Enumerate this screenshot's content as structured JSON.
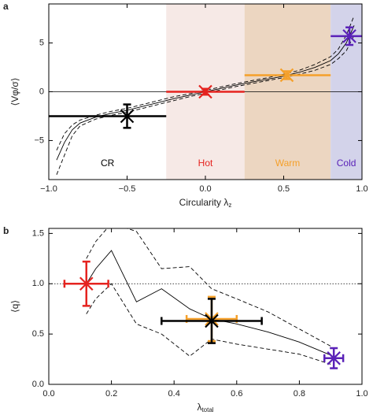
{
  "chart_data": [
    {
      "type": "errorbar",
      "panel": "a",
      "ylabel": "⟨Vφ/σ⟩",
      "xlabel": "Circularity λ",
      "xlabel_sub": "z",
      "xlim": [
        -1,
        1
      ],
      "ylim": [
        -9,
        9
      ],
      "xticks": [
        {
          "value": -1,
          "label": "−1.0"
        },
        {
          "value": -0.5,
          "label": "−0.5"
        },
        {
          "value": 0,
          "label": "0.0"
        },
        {
          "value": 0.5,
          "label": "0.5"
        },
        {
          "value": 1,
          "label": "1.0"
        }
      ],
      "yticks": [
        {
          "value": -5,
          "label": "−5"
        },
        0,
        5
      ],
      "hline": 0,
      "hline_style": "solid",
      "xcaps": false,
      "regions": {
        "labels": [
          "CR",
          "Hot",
          "Warm",
          "Cold"
        ],
        "start": [
          -1,
          -0.25,
          0.25,
          0.8
        ],
        "end": [
          -0.25,
          0.25,
          0.8,
          1
        ],
        "fill": [
          "#ffffff",
          "#f6e9e6",
          "#ecd6c1",
          "#d3d3ea"
        ],
        "label_color": [
          "#000000",
          "#e5231f",
          "#f5a02a",
          "#5a22b8"
        ]
      },
      "x": [
        -0.95,
        -0.9,
        -0.85,
        -0.8,
        -0.7,
        -0.6,
        -0.5,
        -0.4,
        -0.3,
        -0.2,
        -0.1,
        0,
        0.1,
        0.2,
        0.3,
        0.4,
        0.5,
        0.6,
        0.7,
        0.8,
        0.85,
        0.9,
        0.95
      ],
      "lines": [
        {
          "dash": false,
          "values": [
            -7,
            -5.2,
            -3.9,
            -3.2,
            -2.6,
            -2.2,
            -1.9,
            -1.5,
            -1.1,
            -0.7,
            -0.35,
            0,
            0.35,
            0.7,
            1.0,
            1.3,
            1.6,
            2.0,
            2.5,
            3.2,
            3.9,
            5.0,
            6.8
          ]
        },
        {
          "dash": true,
          "values": [
            -8.5,
            -6.5,
            -4.5,
            -3.5,
            -2.8,
            -2.4,
            -2.1,
            -1.7,
            -1.3,
            -0.9,
            -0.5,
            -0.15,
            0.2,
            0.55,
            0.85,
            1.15,
            1.45,
            1.8,
            2.2,
            2.8,
            3.4,
            4.2,
            5.8
          ]
        },
        {
          "dash": true,
          "values": [
            -6,
            -4.3,
            -3.4,
            -2.9,
            -2.4,
            -2.0,
            -1.7,
            -1.3,
            -0.9,
            -0.5,
            -0.2,
            0.15,
            0.5,
            0.85,
            1.15,
            1.45,
            1.8,
            2.2,
            2.8,
            3.6,
            4.4,
            5.8,
            7.8
          ]
        }
      ],
      "points": {
        "x": [
          -0.5,
          0,
          0.52,
          0.92
        ],
        "y": [
          -2.5,
          0,
          1.7,
          5.7
        ],
        "yerr": [
          1.2,
          0.3,
          0.4,
          0.9
        ],
        "xlo": [
          -1,
          -0.25,
          0.25,
          0.8
        ],
        "xhi": [
          -0.25,
          0.25,
          0.8,
          1
        ],
        "colors": [
          "#000000",
          "#e5231f",
          "#f5a02a",
          "#5a22b8"
        ]
      }
    },
    {
      "type": "errorbar",
      "panel": "b",
      "ylabel": "⟨q⟩",
      "xlabel": "λ",
      "xlabel_sub": "total",
      "xlim": [
        0,
        1
      ],
      "ylim": [
        0,
        1.55
      ],
      "xticks": [
        {
          "value": 0,
          "label": "0.0"
        },
        {
          "value": 0.2,
          "label": "0.2"
        },
        {
          "value": 0.4,
          "label": "0.4"
        },
        {
          "value": 0.6,
          "label": "0.6"
        },
        {
          "value": 0.8,
          "label": "0.8"
        },
        {
          "value": 1,
          "label": "1.0"
        }
      ],
      "yticks": [
        {
          "value": 0,
          "label": "0.0"
        },
        {
          "value": 0.5,
          "label": "0.5"
        },
        {
          "value": 1,
          "label": "1.0"
        },
        {
          "value": 1.5,
          "label": "1.5"
        }
      ],
      "hline": 1,
      "hline_style": "dotted",
      "xcaps": true,
      "x": [
        0.12,
        0.15,
        0.2,
        0.28,
        0.36,
        0.45,
        0.52,
        0.6,
        0.7,
        0.8,
        0.9
      ],
      "lines": [
        {
          "dash": false,
          "values": [
            1.0,
            1.15,
            1.33,
            0.82,
            0.95,
            0.75,
            0.65,
            0.6,
            0.52,
            0.42,
            0.29
          ]
        },
        {
          "dash": true,
          "values": [
            1.25,
            1.42,
            1.6,
            1.52,
            1.15,
            1.17,
            0.95,
            0.85,
            0.72,
            0.55,
            0.38
          ]
        },
        {
          "dash": true,
          "values": [
            0.7,
            0.85,
            1.0,
            0.6,
            0.5,
            0.28,
            0.45,
            0.4,
            0.35,
            0.3,
            0.2
          ]
        }
      ],
      "points": {
        "x": [
          0.12,
          0.52,
          0.52,
          0.91
        ],
        "y": [
          1.0,
          0.65,
          0.63,
          0.26
        ],
        "yerr": [
          0.22,
          0.22,
          0.22,
          0.1
        ],
        "xlo": [
          0.05,
          0.44,
          0.36,
          0.88
        ],
        "xhi": [
          0.19,
          0.6,
          0.68,
          0.94
        ],
        "colors": [
          "#e5231f",
          "#f5a02a",
          "#000000",
          "#5a22b8"
        ]
      }
    }
  ]
}
